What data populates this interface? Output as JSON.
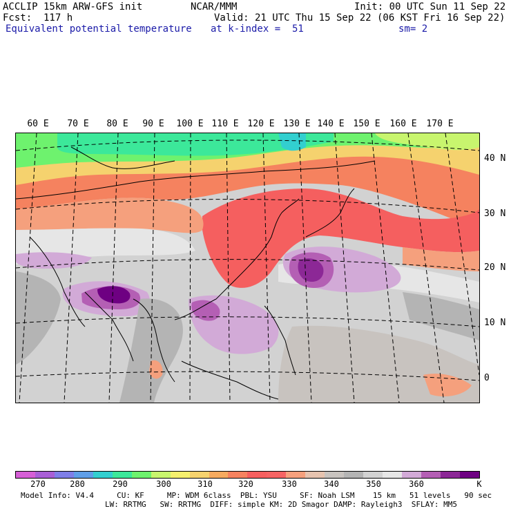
{
  "header": {
    "left_line1": "ACCLIP 15km ARW-GFS init",
    "left_line2": "Fcst:  117 h",
    "field_name": "Equivalent potential temperature",
    "center_line1": "NCAR/MMM",
    "valid_line": "Valid: 21 UTC Thu 15 Sep 22 (06 KST Fri 16 Sep 22)",
    "level_line": "at k-index =  51",
    "init_line": "Init: 00 UTC Sun 11 Sep 22",
    "smooth_line": "sm= 2"
  },
  "map": {
    "lon_labels": [
      "60 E",
      "70 E",
      "80 E",
      "90 E",
      "100 E",
      "110 E",
      "120 E",
      "130 E",
      "140 E",
      "150 E",
      "160 E",
      "170 E"
    ],
    "lat_labels": [
      "40 N",
      "30 N",
      "20 N",
      "10 N",
      "0"
    ]
  },
  "colorbar": {
    "colors": [
      "#d65fd6",
      "#a95fd6",
      "#7f7fe8",
      "#5f9fe8",
      "#32cfcf",
      "#3ce89a",
      "#6ef26e",
      "#c8f56e",
      "#f5f06e",
      "#f5d26e",
      "#f5aa5f",
      "#f5825f",
      "#f55f5f",
      "#f56464",
      "#f5a07d",
      "#e6c3af",
      "#c8c3bf",
      "#b4b4b4",
      "#d2d2d2",
      "#e6e6e6",
      "#d2aad7",
      "#b45fb4",
      "#8c2896",
      "#6e0082"
    ],
    "labels": [
      "270",
      "280",
      "290",
      "300",
      "310",
      "320",
      "330",
      "340",
      "350",
      "360"
    ],
    "unit": "K"
  },
  "footer": {
    "line1": "Model Info: V4.4     CU: KF     MP: WDM 6class  PBL: YSU     SF: Noah LSM    15 km   51 levels   90 sec",
    "line2": "LW: RRTMG   SW: RRTMG  DIFF: simple KM: 2D Smagor DAMP: Rayleigh3  SFLAY: MM5"
  }
}
